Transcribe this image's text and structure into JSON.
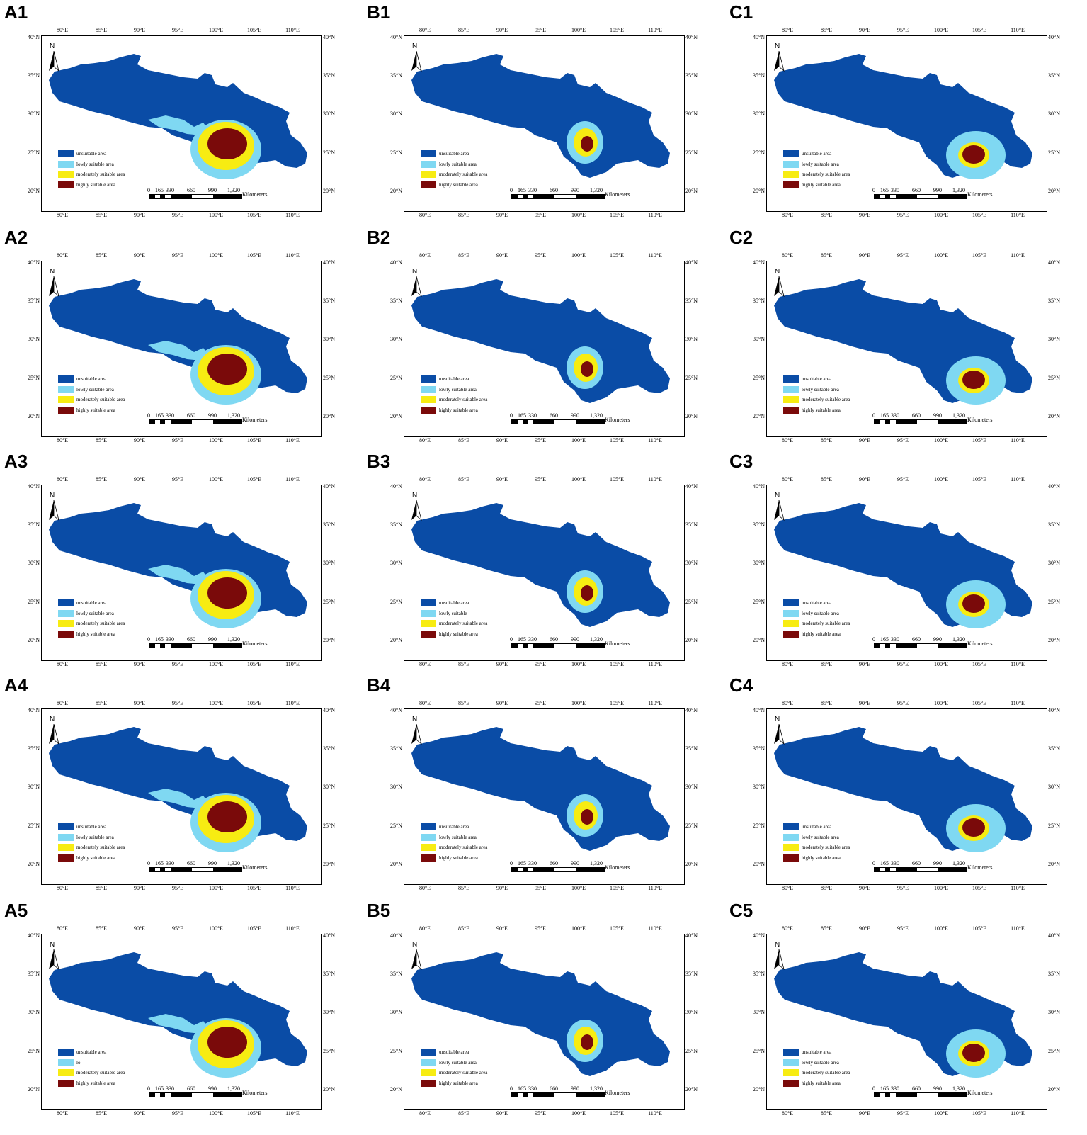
{
  "colors": {
    "unsuitable": "#0a4ca6",
    "lowly": "#7fd8f2",
    "moderately": "#f7ec12",
    "highly": "#7a0a0a"
  },
  "ticks": {
    "lon": [
      "80°E",
      "85°E",
      "90°E",
      "95°E",
      "100°E",
      "105°E",
      "110°E"
    ],
    "lat": [
      "40°N",
      "35°N",
      "30°N",
      "25°N",
      "20°N"
    ]
  },
  "north_label": "N",
  "scale": {
    "numbers": [
      "0",
      "165",
      "330",
      "660",
      "990",
      "1,320"
    ],
    "unit": "Kilometers"
  },
  "panels": [
    {
      "id": "A1",
      "legend": [
        "unsuitable area",
        "lowly suitable area",
        "moderately suitable area",
        "highly suitable area"
      ],
      "hotspot": "A"
    },
    {
      "id": "B1",
      "legend": [
        "unsuitable area",
        "lowly suitable area",
        "moderately suitable area",
        "highly suitable area"
      ],
      "hotspot": "B"
    },
    {
      "id": "C1",
      "legend": [
        "unsuitable area",
        "lowly suitable area",
        "moderately suitable area",
        "highly suitable area"
      ],
      "hotspot": "C"
    },
    {
      "id": "A2",
      "legend": [
        "unsuitable area",
        "lowly suitable area",
        "moderately suitable area",
        "highly suitable area"
      ],
      "hotspot": "A"
    },
    {
      "id": "B2",
      "legend": [
        "unsuitable area",
        "lowly suitable area",
        "moderately suitable area",
        "highly suitable area"
      ],
      "hotspot": "B"
    },
    {
      "id": "C2",
      "legend": [
        "unsuitable area",
        "lowly suitable area",
        "moderately suitable area",
        "highly suitable area"
      ],
      "hotspot": "C"
    },
    {
      "id": "A3",
      "legend": [
        "unsuitable area",
        "lowly suitable area",
        "moderately suitable area",
        "highly suitable area"
      ],
      "hotspot": "A"
    },
    {
      "id": "B3",
      "legend": [
        "unsuitable area",
        "lowly suitable",
        "moderately suitable area",
        "highly suitable area"
      ],
      "hotspot": "B"
    },
    {
      "id": "C3",
      "legend": [
        "unsuitable area",
        "lowly suitable area",
        "moderately suitable area",
        "highly suitable area"
      ],
      "hotspot": "C"
    },
    {
      "id": "A4",
      "legend": [
        "unsuitable area",
        "lowly suitable area",
        "moderately suitable area",
        "highly suitable area"
      ],
      "hotspot": "A"
    },
    {
      "id": "B4",
      "legend": [
        "unsuitable area",
        "lowly suitable area",
        "moderately suitable area",
        "highly suitable area"
      ],
      "hotspot": "B"
    },
    {
      "id": "C4",
      "legend": [
        "unsuitable area",
        "lowly suitable area",
        "moderately suitable area",
        "highly suitable area"
      ],
      "hotspot": "C"
    },
    {
      "id": "A5",
      "legend": [
        "unsuitable area",
        "lo",
        "moderately suitable area",
        "highly suitable area"
      ],
      "hotspot": "A"
    },
    {
      "id": "B5",
      "legend": [
        "unsuitable area",
        "lowly suitable area",
        "moderately suitable area",
        "highly suitable area"
      ],
      "hotspot": "B"
    },
    {
      "id": "C5",
      "legend": [
        "unsuitable area",
        "lowly suitable area",
        "moderately suitable area",
        "highly suitable area"
      ],
      "hotspot": "C"
    }
  ]
}
